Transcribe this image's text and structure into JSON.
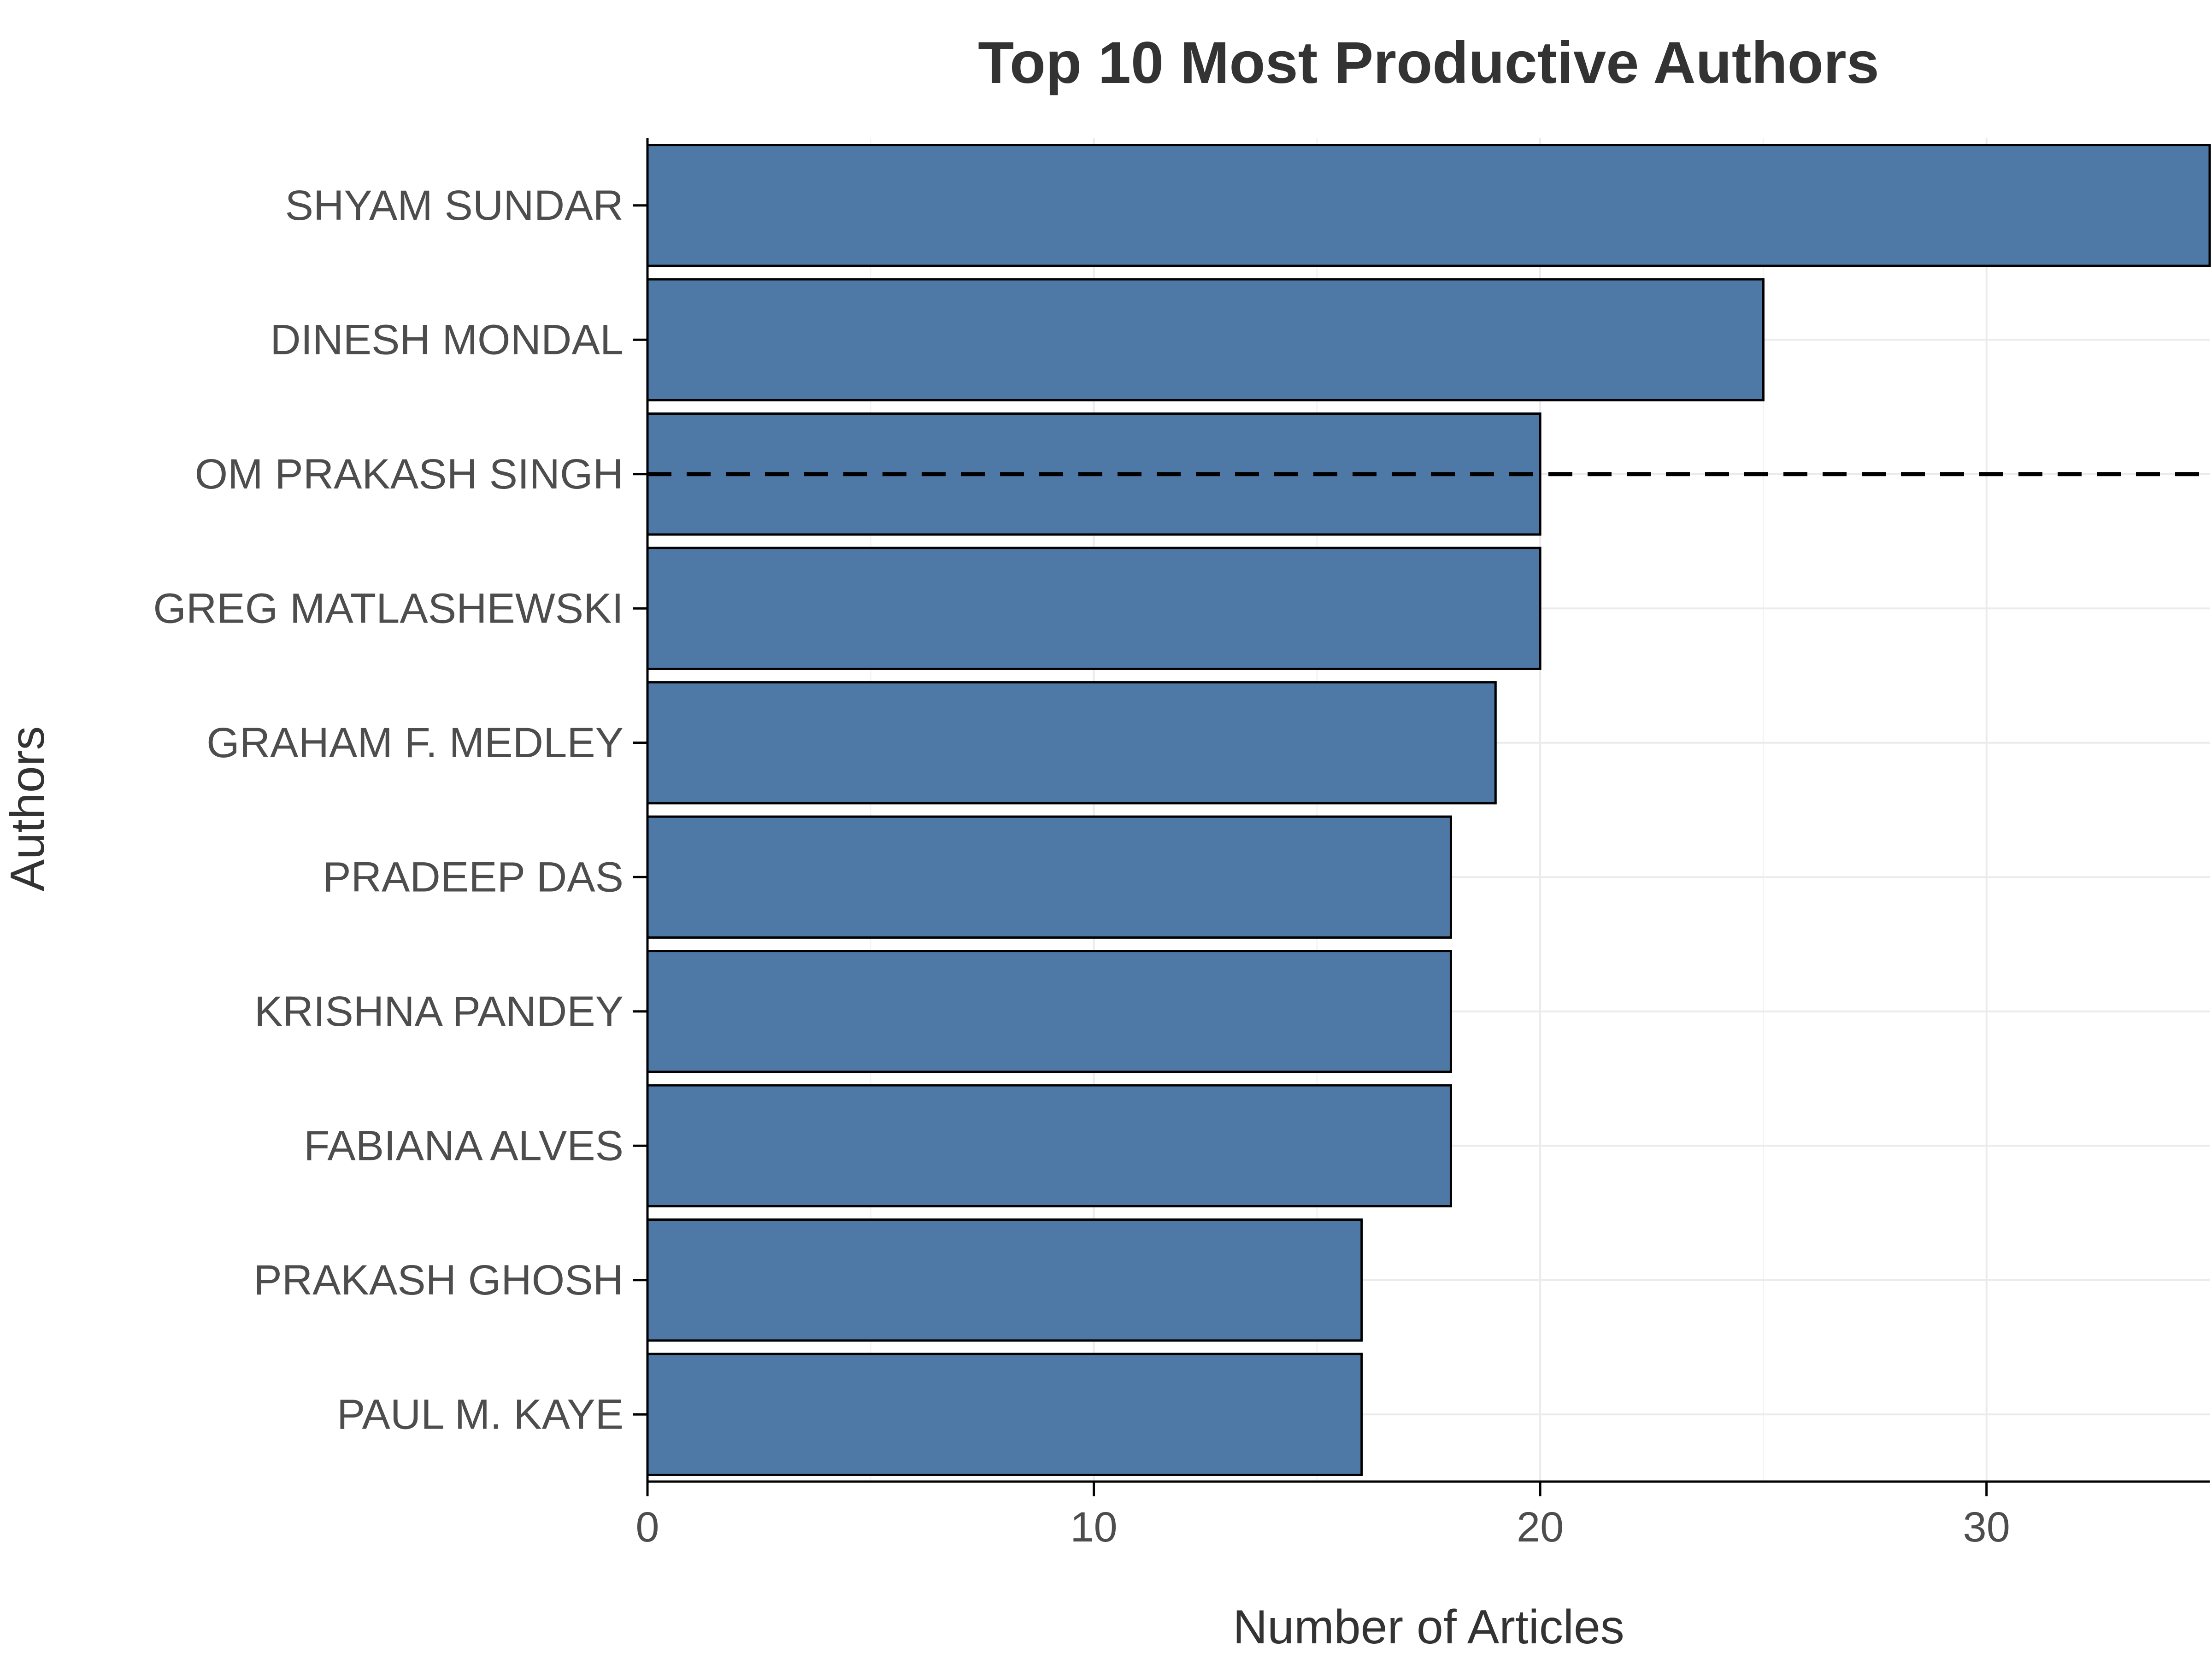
{
  "chart_data": {
    "type": "bar",
    "orientation": "horizontal",
    "title": "Top 10 Most Productive Authors",
    "xlabel": "Number of Articles",
    "ylabel": "Authors",
    "categories": [
      "SHYAM SUNDAR",
      "DINESH MONDAL",
      "OM PRAKASH SINGH",
      "GREG MATLASHEWSKI",
      "GRAHAM F. MEDLEY",
      "PRADEEP DAS",
      "KRISHNA PANDEY",
      "FABIANA ALVES",
      "PRAKASH GHOSH",
      "PAUL M. KAYE"
    ],
    "values": [
      35,
      25,
      20,
      20,
      19,
      18,
      18,
      18,
      16,
      16
    ],
    "xlim": [
      0,
      35
    ],
    "xticks": [
      0,
      10,
      20,
      30
    ],
    "reference_line": {
      "orientation": "horizontal",
      "at_category": "OM PRAKASH SINGH",
      "style": "dashed"
    },
    "bar_color": "#4e79a7",
    "grid": true
  }
}
